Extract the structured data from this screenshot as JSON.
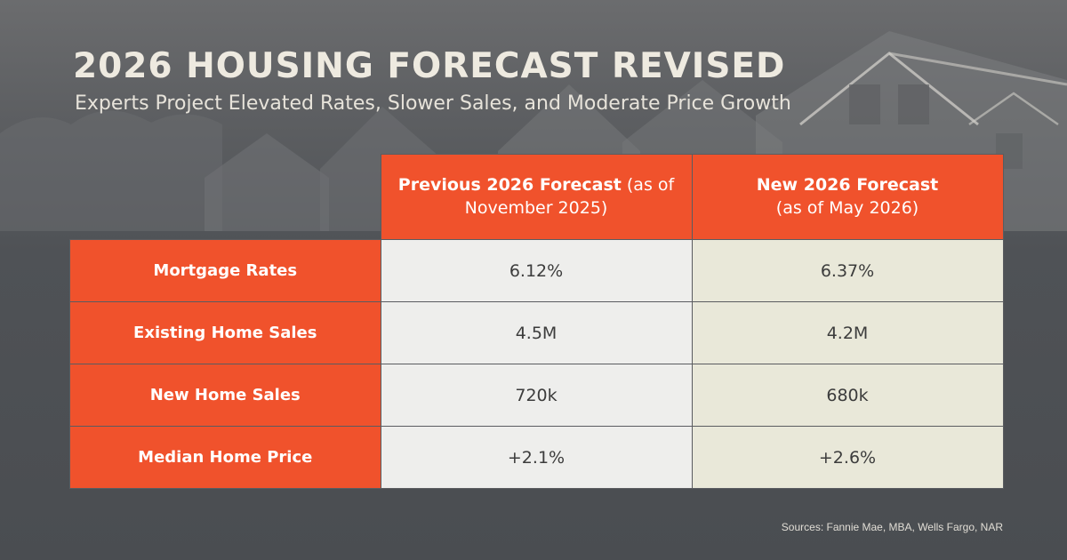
{
  "header": {
    "title": "2026 HOUSING FORECAST REVISED",
    "subtitle": "Experts Project Elevated Rates, Slower Sales, and Moderate Price Growth"
  },
  "table": {
    "columns": [
      {
        "bold": "Previous 2026 Forecast",
        "suffix_inline": " (as of",
        "line2": "November 2025)"
      },
      {
        "bold": "New 2026 Forecast",
        "suffix_inline": "",
        "line2": "(as of May 2026)"
      }
    ],
    "rows": [
      {
        "label": "Mortgage Rates",
        "previous": "6.12%",
        "new": "6.37%"
      },
      {
        "label": "Existing Home Sales",
        "previous": "4.5M",
        "new": "4.2M"
      },
      {
        "label": "New Home Sales",
        "previous": "720k",
        "new": "680k"
      },
      {
        "label": "Median Home Price",
        "previous": "+2.1%",
        "new": "+2.6%"
      }
    ]
  },
  "footer": {
    "sources": "Sources: Fannie Mae, MBA, Wells Fargo, NAR"
  },
  "colors": {
    "accent": "#f0522c",
    "previous_cell": "#eeeeec",
    "new_cell": "#e9e8d9",
    "background": "#4f5256"
  }
}
